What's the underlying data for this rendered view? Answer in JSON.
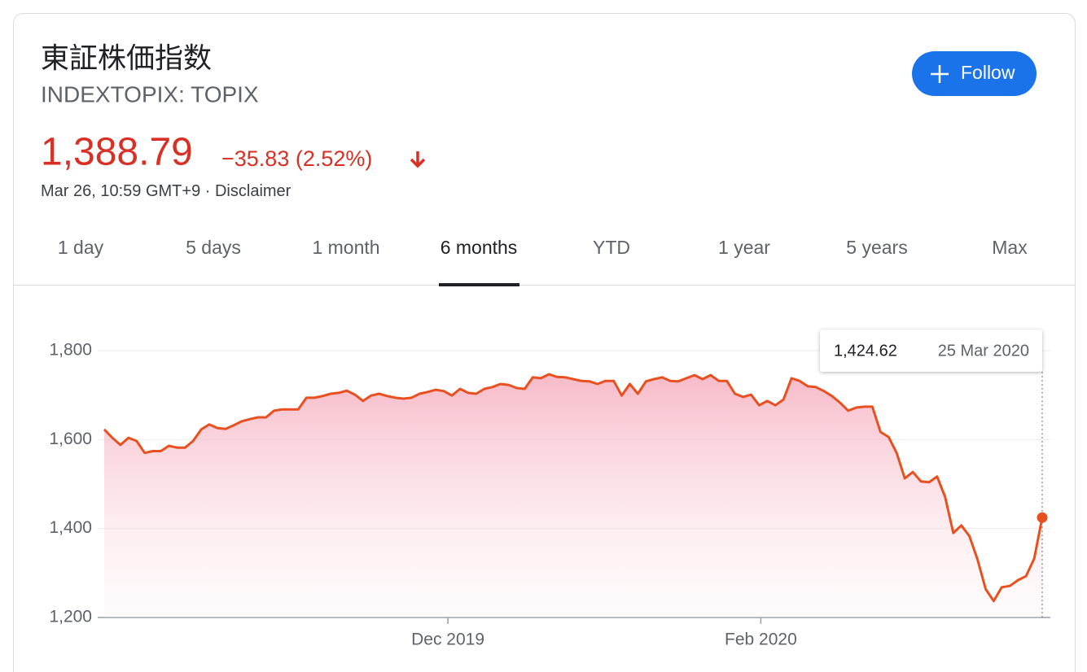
{
  "header": {
    "title": "東証株価指数",
    "subtitle": "INDEXTOPIX: TOPIX",
    "price": "1,388.79",
    "change": "−35.83 (2.52%)",
    "timestamp": "Mar 26, 10:59 GMT+9 ·",
    "disclaimer": "Disclaimer",
    "follow": "Follow"
  },
  "tabs": [
    "1 day",
    "5 days",
    "1 month",
    "6 months",
    "YTD",
    "1 year",
    "5 years",
    "Max"
  ],
  "selected_tab": 3,
  "chart_data": {
    "type": "line",
    "series": [
      {
        "color": "#e8501f",
        "values": [
          1623,
          1604,
          1588,
          1604,
          1597,
          1570,
          1574,
          1574,
          1586,
          1582,
          1582,
          1597,
          1623,
          1634,
          1626,
          1624,
          1632,
          1641,
          1646,
          1650,
          1650,
          1665,
          1668,
          1668,
          1668,
          1694,
          1694,
          1698,
          1703,
          1705,
          1710,
          1701,
          1687,
          1699,
          1703,
          1698,
          1694,
          1692,
          1694,
          1703,
          1707,
          1712,
          1709,
          1699,
          1714,
          1705,
          1703,
          1714,
          1718,
          1725,
          1723,
          1716,
          1714,
          1740,
          1738,
          1747,
          1741,
          1740,
          1736,
          1732,
          1731,
          1725,
          1732,
          1732,
          1699,
          1725,
          1703,
          1731,
          1736,
          1740,
          1732,
          1731,
          1738,
          1745,
          1736,
          1745,
          1732,
          1732,
          1703,
          1696,
          1701,
          1677,
          1687,
          1677,
          1690,
          1738,
          1732,
          1720,
          1718,
          1709,
          1698,
          1683,
          1665,
          1672,
          1674,
          1674,
          1617,
          1606,
          1570,
          1513,
          1527,
          1506,
          1504,
          1517,
          1471,
          1390,
          1407,
          1383,
          1330,
          1264,
          1237,
          1268,
          1271,
          1284,
          1293,
          1332,
          1424.62
        ]
      }
    ],
    "xlim": [
      0,
      116
    ],
    "xticks": [
      {
        "value": 42.5,
        "label": "Dec 2019"
      },
      {
        "value": 81.2,
        "label": "Feb 2020"
      }
    ],
    "ylim": [
      1200,
      1800
    ],
    "yticks": [
      {
        "value": 1200,
        "label": "1,200"
      },
      {
        "value": 1400,
        "label": "1,400"
      },
      {
        "value": 1600,
        "label": "1,600"
      },
      {
        "value": 1800,
        "label": "1,800"
      }
    ],
    "grid": true,
    "tooltip": {
      "label": "1,424.62",
      "date": "25 Mar 2020"
    }
  }
}
